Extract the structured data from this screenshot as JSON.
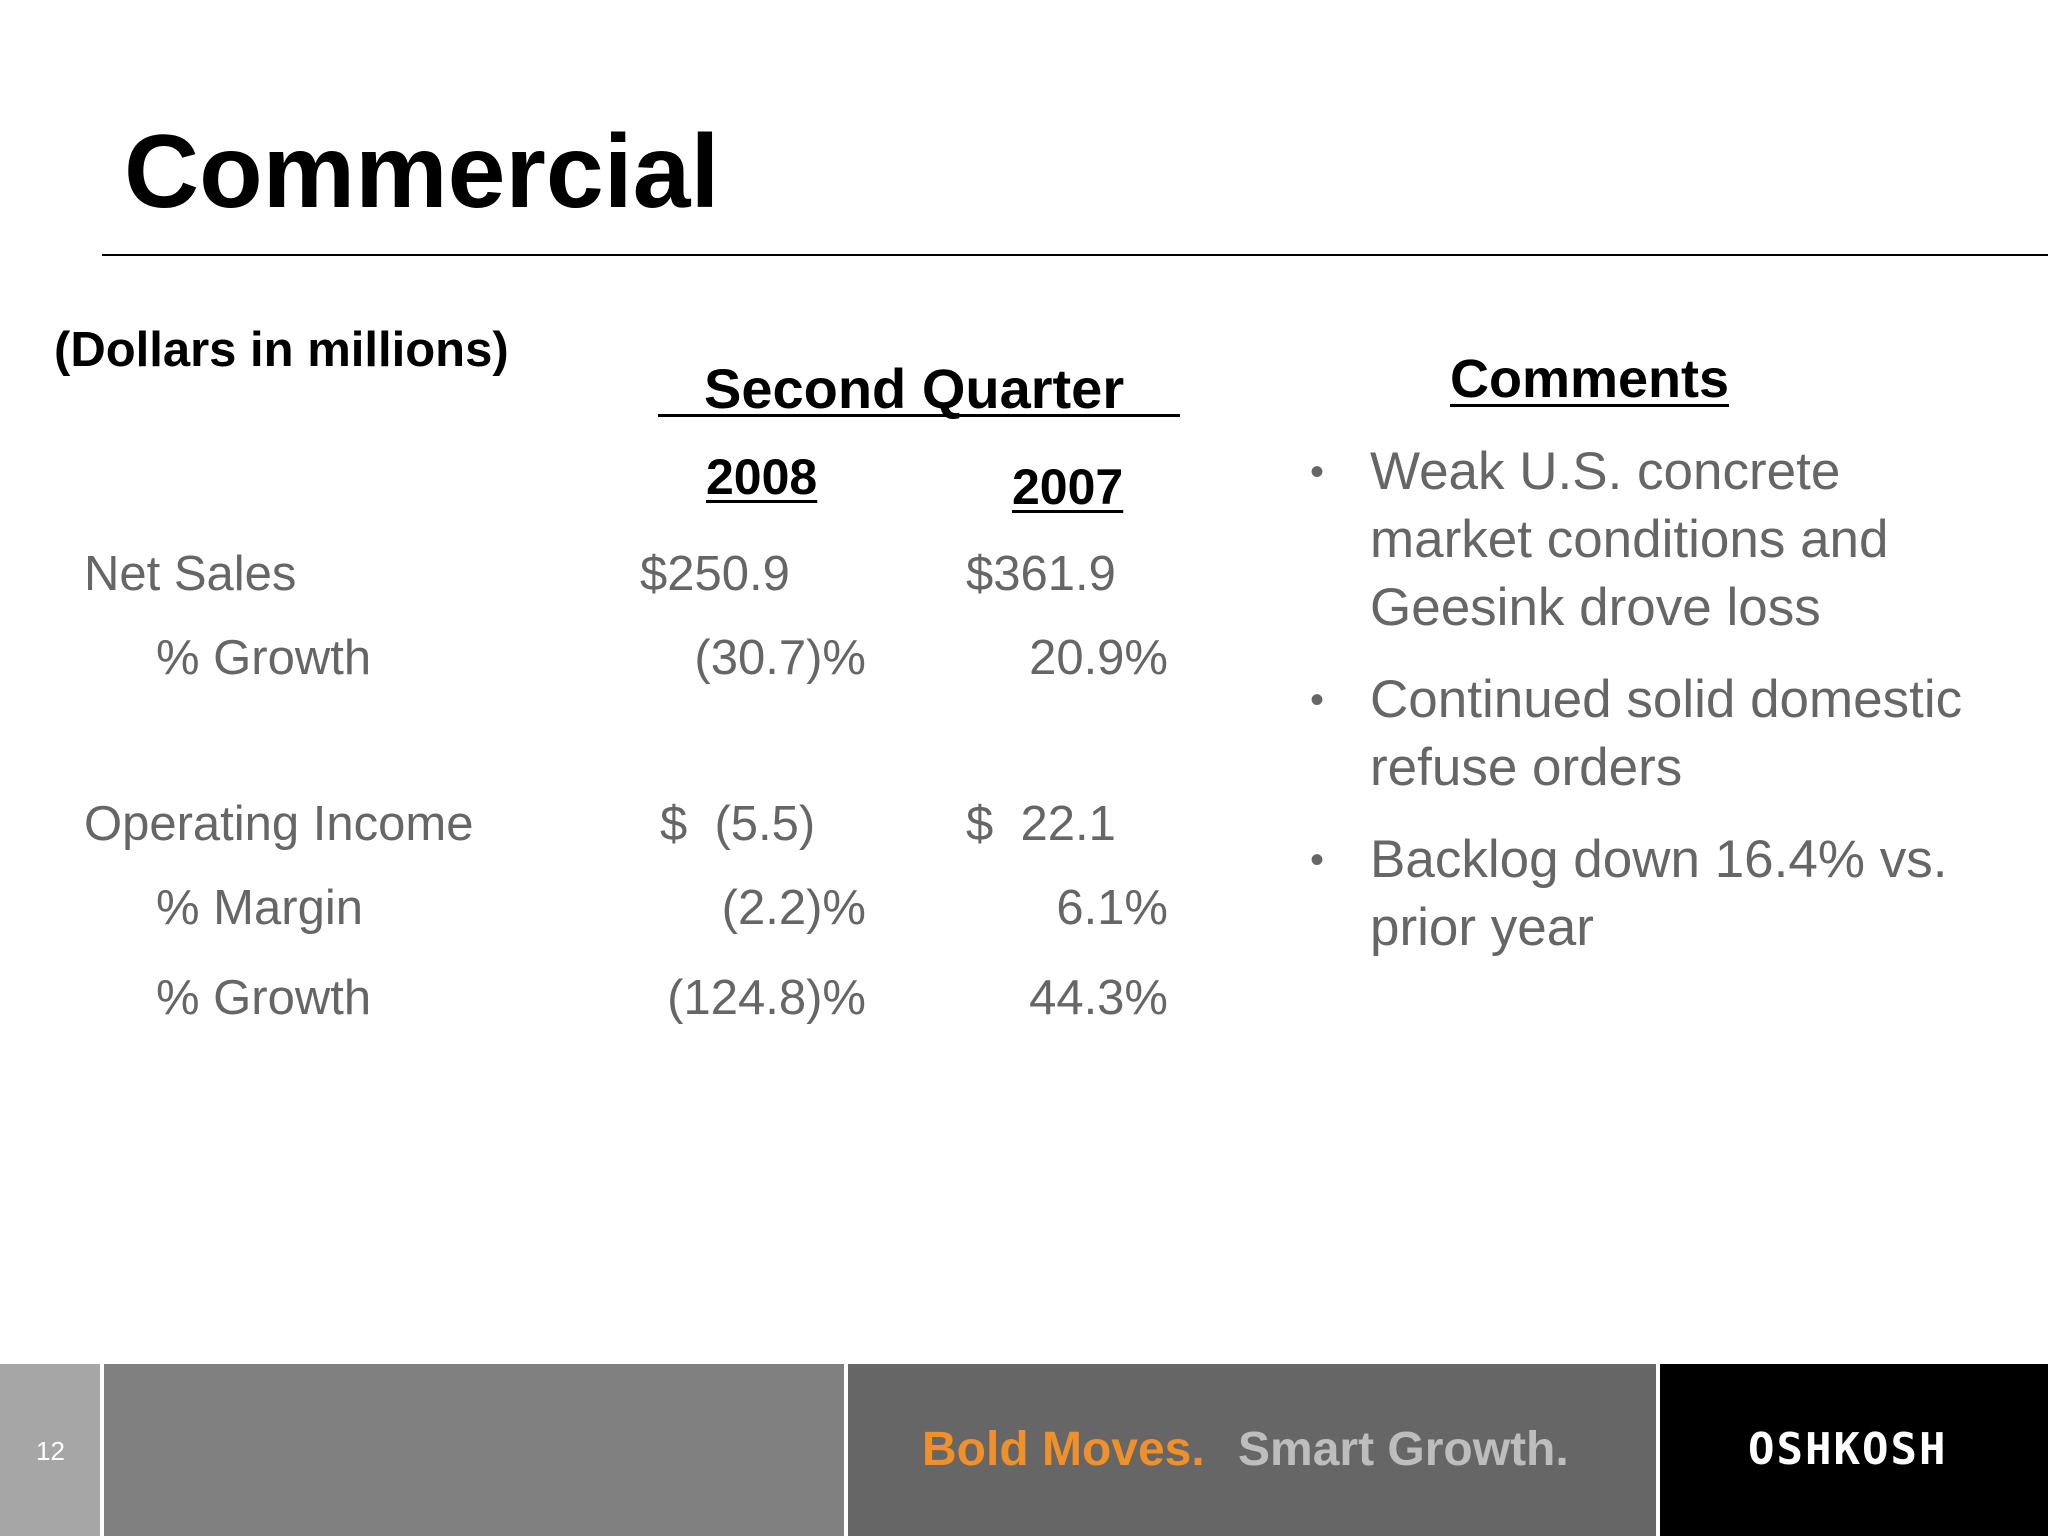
{
  "slide": {
    "title": "Commercial",
    "units_note": "(Dollars in millions)",
    "page_number": "12"
  },
  "table": {
    "period_header": "Second Quarter",
    "years": [
      "2008",
      "2007"
    ],
    "rows": [
      {
        "label": "Net Sales",
        "v2008": "$250.9",
        "v2007": "$361.9"
      },
      {
        "label": "% Growth",
        "v2008": "(30.7)%",
        "v2007": "20.9%"
      },
      {
        "label": "Operating Income",
        "v2008": "$  (5.5)",
        "v2007": "$  22.1"
      },
      {
        "label": "% Margin",
        "v2008": "(2.2)%",
        "v2007": "6.1%"
      },
      {
        "label": "% Growth",
        "v2008": "(124.8)%",
        "v2007": "44.3%"
      }
    ]
  },
  "comments": {
    "heading": "Comments",
    "bullets": [
      "Weak U.S. concrete market conditions and Geesink drove loss",
      "Continued solid domestic refuse orders",
      "Backlog down 16.4% vs. prior year"
    ]
  },
  "footer": {
    "tagline_part1": "Bold Moves.",
    "tagline_part2": "Smart Growth.",
    "logo_text": "OSHKOSH",
    "colors": {
      "accent": "#f0902a",
      "logo_bg": "#000000"
    }
  }
}
